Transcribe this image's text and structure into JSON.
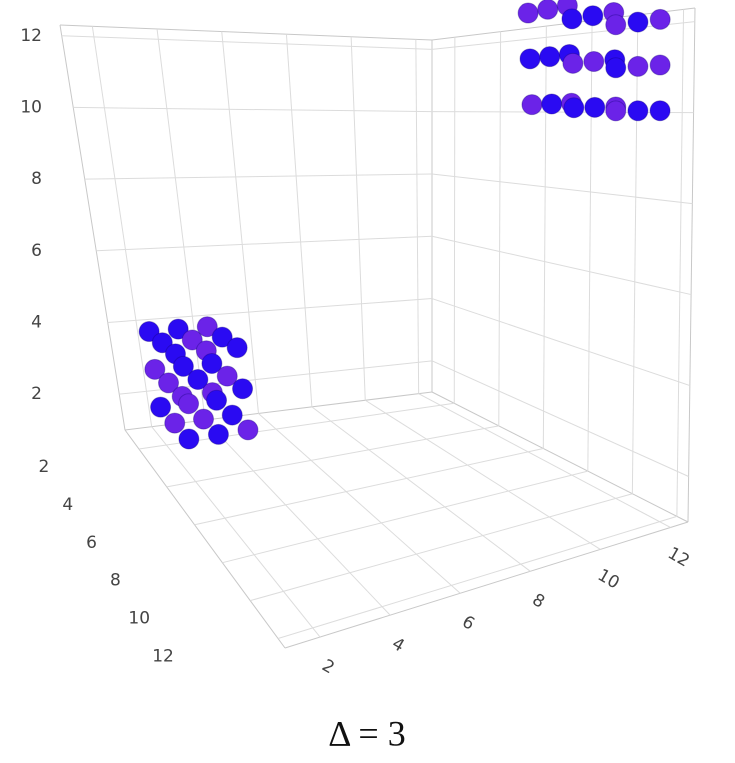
{
  "chart_data": {
    "type": "scatter3d",
    "title": "Δ = 3",
    "x": [
      2,
      2,
      2,
      2,
      2,
      2,
      2,
      2,
      2,
      3,
      3,
      3,
      3,
      3,
      3,
      3,
      3,
      3,
      4,
      4,
      4,
      4,
      4,
      4,
      4,
      4,
      4,
      10,
      10,
      10,
      10,
      10,
      10,
      10,
      10,
      10,
      11,
      11,
      11,
      11,
      11,
      11,
      11,
      11,
      11,
      12,
      12,
      12,
      12,
      12,
      12,
      12,
      12,
      12
    ],
    "y": [
      2,
      2,
      2,
      3,
      3,
      3,
      4,
      4,
      4,
      2,
      2,
      2,
      3,
      3,
      3,
      4,
      4,
      4,
      2,
      2,
      2,
      3,
      3,
      3,
      4,
      4,
      4,
      10,
      10,
      10,
      11,
      11,
      11,
      12,
      12,
      12,
      10,
      10,
      10,
      11,
      11,
      11,
      12,
      12,
      12,
      10,
      10,
      10,
      11,
      11,
      11,
      12,
      12,
      12
    ],
    "z": [
      2,
      3,
      4,
      2,
      3,
      4,
      2,
      3,
      4,
      2,
      3,
      4,
      2,
      3,
      4,
      2,
      3,
      4,
      2,
      3,
      4,
      2,
      3,
      4,
      2,
      3,
      4,
      10,
      11,
      12,
      10,
      11,
      12,
      10,
      11,
      12,
      10,
      11,
      12,
      10,
      11,
      12,
      10,
      11,
      12,
      10,
      11,
      12,
      10,
      11,
      12,
      10,
      11,
      12
    ],
    "colors": [
      "#2a0af2",
      "#6b23e8",
      "#2a0af2",
      "#6b23e8",
      "#6b23e8",
      "#2a0af2",
      "#2a0af2",
      "#6b23e8",
      "#2a0af2",
      "#6b23e8",
      "#2a0af2",
      "#2a0af2",
      "#6b23e8",
      "#2a0af2",
      "#6b23e8",
      "#2a0af2",
      "#6b23e8",
      "#6b23e8",
      "#2a0af2",
      "#2a0af2",
      "#6b23e8",
      "#2a0af2",
      "#6b23e8",
      "#2a0af2",
      "#6b23e8",
      "#2a0af2",
      "#2a0af2",
      "#6b23e8",
      "#2a0af2",
      "#6b23e8",
      "#2a0af2",
      "#2a0af2",
      "#6b23e8",
      "#6b23e8",
      "#2a0af2",
      "#6b23e8",
      "#2a0af2",
      "#6b23e8",
      "#2a0af2",
      "#2a0af2",
      "#6b23e8",
      "#2a0af2",
      "#6b23e8",
      "#2a0af2",
      "#6b23e8",
      "#6b23e8",
      "#2a0af2",
      "#6b23e8",
      "#2a0af2",
      "#6b23e8",
      "#2a0af2",
      "#2a0af2",
      "#6b23e8",
      "#6b23e8"
    ],
    "xlim": [
      1,
      12.5
    ],
    "ylim": [
      1,
      12.5
    ],
    "zlim": [
      1,
      12.3
    ],
    "xticks": [
      2,
      4,
      6,
      8,
      10,
      12
    ],
    "yticks": [
      2,
      4,
      6,
      8,
      10,
      12
    ],
    "zticks": [
      2,
      4,
      6,
      8,
      10,
      12
    ],
    "grid": true
  }
}
